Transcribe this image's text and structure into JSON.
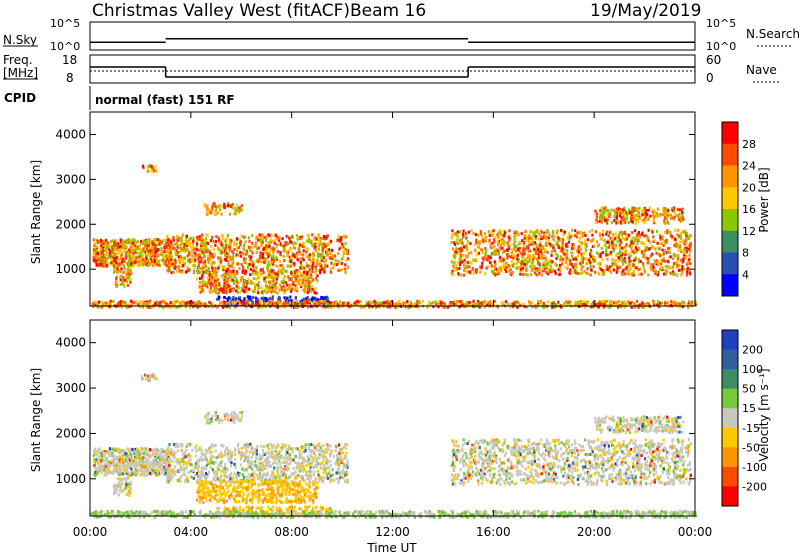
{
  "header": {
    "title": "Christmas Valley West (fitACF)",
    "beam": "Beam 16",
    "date": "19/May/2019"
  },
  "nsky_panel": {
    "left_label": "N.Sky",
    "right_label": "N.Search",
    "left_ticks": [
      "10^5",
      "10^0"
    ],
    "right_ticks": [
      "10^5",
      "10^0"
    ]
  },
  "freq_panel": {
    "left_label_1": "Freq.",
    "left_label_2": "[MHz]",
    "right_label": "Nave",
    "left_ticks": [
      "18",
      "8"
    ],
    "right_ticks": [
      "60",
      "0"
    ]
  },
  "cpid": {
    "label": "CPID",
    "value": "normal (fast) 151 RF"
  },
  "chart_data": [
    {
      "type": "line",
      "name": "nsky-nsearch",
      "x_range_hours": [
        0,
        24
      ],
      "nsky_steps": [
        {
          "x0": 0,
          "x1": 3,
          "y": 0.55
        },
        {
          "x0": 3,
          "x1": 15,
          "y": 0.8
        },
        {
          "x0": 15,
          "x1": 24,
          "y": 0.55
        }
      ]
    },
    {
      "type": "line",
      "name": "frequency-nave",
      "y_ticks": [
        "18",
        "8"
      ],
      "freq_steps": [
        {
          "x0": 0,
          "x1": 3,
          "y": 14
        },
        {
          "x0": 3,
          "x1": 15,
          "y": 9
        },
        {
          "x0": 15,
          "x1": 24,
          "y": 14
        }
      ],
      "nave_level": 11
    },
    {
      "type": "heatmap",
      "name": "power",
      "ylabel": "Slant Range [km]",
      "y_ticks": [
        "4000",
        "3000",
        "2000",
        "1000"
      ],
      "ylim": [
        180,
        4500
      ],
      "colorbar_label": "Power [dB]",
      "colorbar_ticks": [
        "28",
        "24",
        "20",
        "16",
        "12",
        "8",
        "4"
      ],
      "colorbar_colors": [
        "#ff0000",
        "#ff4a00",
        "#ff9600",
        "#ffc800",
        "#8cc800",
        "#3c8c64",
        "#2850b4",
        "#0000ff"
      ]
    },
    {
      "type": "heatmap",
      "name": "velocity",
      "ylabel": "Slant Range [km]",
      "xlabel": "Time UT",
      "x_ticks": [
        "00:00",
        "04:00",
        "08:00",
        "12:00",
        "16:00",
        "20:00",
        "00:00"
      ],
      "y_ticks": [
        "4000",
        "3000",
        "2000",
        "1000"
      ],
      "ylim": [
        180,
        4500
      ],
      "colorbar_label": "Velocity [m s⁻¹]",
      "colorbar_ticks": [
        "200",
        "100",
        "50",
        "15",
        "-15",
        "-50",
        "-100",
        "-200"
      ],
      "colorbar_colors": [
        "#2040c0",
        "#3060a0",
        "#3c8c64",
        "#78c83c",
        "#c8c8c0",
        "#ffc800",
        "#ff9600",
        "#ff4a00",
        "#ff0000"
      ]
    }
  ]
}
